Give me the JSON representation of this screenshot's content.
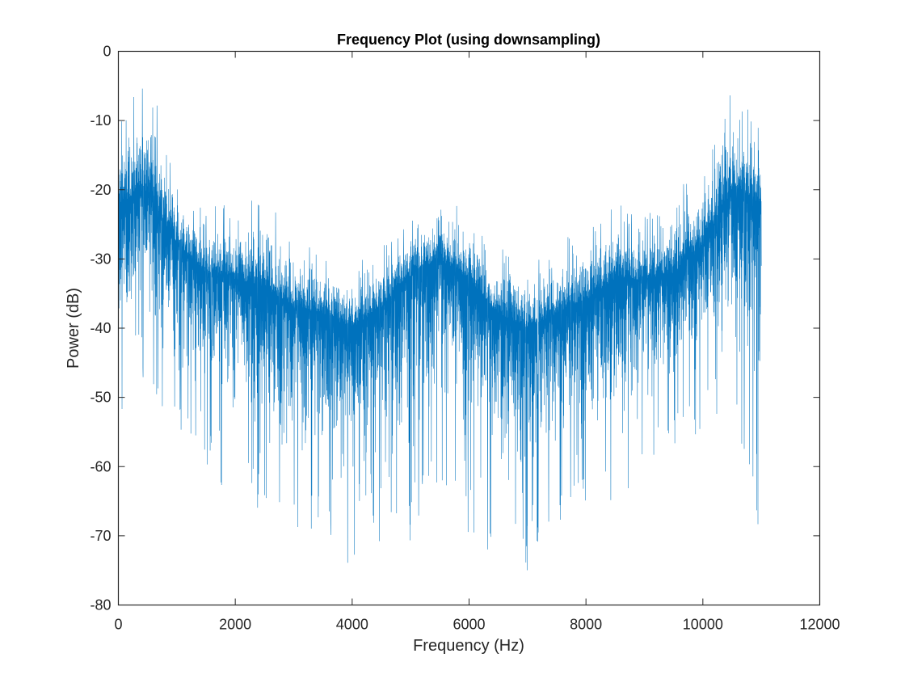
{
  "chart_data": {
    "type": "line",
    "title": "Frequency Plot (using downsampling)",
    "xlabel": "Frequency (Hz)",
    "ylabel": "Power (dB)",
    "xlim": [
      0,
      12000
    ],
    "ylim": [
      -80,
      0
    ],
    "xticks": [
      0,
      2000,
      4000,
      6000,
      8000,
      10000,
      12000
    ],
    "yticks": [
      -80,
      -70,
      -60,
      -50,
      -40,
      -30,
      -20,
      -10,
      0
    ],
    "grid": false,
    "series_color": "#0072BD",
    "note": "Dense noisy spectrum; summarized as per-500 Hz envelope (max, typical mean, min) in dB",
    "envelope": {
      "x": [
        0,
        500,
        1000,
        1500,
        2000,
        2500,
        3000,
        3500,
        4000,
        4500,
        5000,
        5500,
        6000,
        6500,
        7000,
        7500,
        8000,
        8500,
        9000,
        9500,
        10000,
        10500,
        11000
      ],
      "max": [
        -10,
        -3,
        -18,
        -22,
        -22,
        -20,
        -27,
        -28,
        -30,
        -28,
        -24,
        -21,
        -23,
        -27,
        -30,
        -28,
        -25,
        -22,
        -23,
        -20,
        -17,
        -3,
        -10
      ],
      "mean": [
        -22,
        -20,
        -28,
        -32,
        -33,
        -34,
        -37,
        -38,
        -40,
        -37,
        -32,
        -30,
        -33,
        -38,
        -40,
        -38,
        -36,
        -33,
        -33,
        -32,
        -28,
        -20,
        -22
      ],
      "min": [
        -56,
        -48,
        -55,
        -60,
        -65,
        -67,
        -71,
        -68,
        -75,
        -73,
        -71,
        -62,
        -71,
        -73,
        -75,
        -70,
        -67,
        -66,
        -62,
        -57,
        -55,
        -50,
        -71
      ]
    }
  }
}
